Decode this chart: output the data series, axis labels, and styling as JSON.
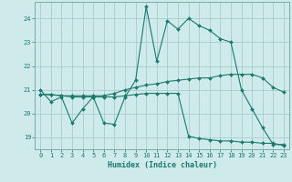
{
  "xlabel": "Humidex (Indice chaleur)",
  "background_color": "#ceeaea",
  "grid_color": "#aacccc",
  "line_color": "#1a7a6e",
  "xlim": [
    -0.5,
    23.5
  ],
  "ylim": [
    18.5,
    24.7
  ],
  "yticks": [
    19,
    20,
    21,
    22,
    23,
    24
  ],
  "xticks": [
    0,
    1,
    2,
    3,
    4,
    5,
    6,
    7,
    8,
    9,
    10,
    11,
    12,
    13,
    14,
    15,
    16,
    17,
    18,
    19,
    20,
    21,
    22,
    23
  ],
  "line1_x": [
    0,
    1,
    2,
    3,
    4,
    5,
    6,
    7,
    8,
    9,
    10,
    11,
    12,
    13,
    14,
    15,
    16,
    17,
    18,
    19,
    20,
    21,
    22,
    23
  ],
  "line1_y": [
    21.0,
    20.5,
    20.7,
    19.6,
    20.2,
    20.7,
    19.6,
    19.55,
    20.7,
    21.4,
    24.5,
    22.2,
    23.9,
    23.55,
    24.0,
    23.7,
    23.5,
    23.15,
    23.0,
    21.0,
    20.2,
    19.4,
    18.7,
    18.7
  ],
  "line2_x": [
    0,
    1,
    2,
    3,
    4,
    5,
    6,
    7,
    8,
    9,
    10,
    11,
    12,
    13,
    14,
    15,
    16,
    17,
    18,
    19,
    20,
    21,
    22,
    23
  ],
  "line2_y": [
    20.8,
    20.8,
    20.75,
    20.75,
    20.75,
    20.75,
    20.75,
    20.85,
    21.0,
    21.1,
    21.2,
    21.25,
    21.35,
    21.4,
    21.45,
    21.5,
    21.5,
    21.6,
    21.65,
    21.65,
    21.65,
    21.5,
    21.1,
    20.9
  ],
  "line3_x": [
    0,
    1,
    2,
    3,
    4,
    5,
    6,
    7,
    8,
    9,
    10,
    11,
    12,
    13,
    14,
    15,
    16,
    17,
    18,
    19,
    20,
    21,
    22,
    23
  ],
  "line3_y": [
    20.8,
    20.8,
    20.75,
    20.7,
    20.7,
    20.7,
    20.7,
    20.7,
    20.75,
    20.8,
    20.85,
    20.85,
    20.85,
    20.85,
    19.05,
    18.95,
    18.9,
    18.85,
    18.85,
    18.8,
    18.8,
    18.75,
    18.75,
    18.65
  ]
}
